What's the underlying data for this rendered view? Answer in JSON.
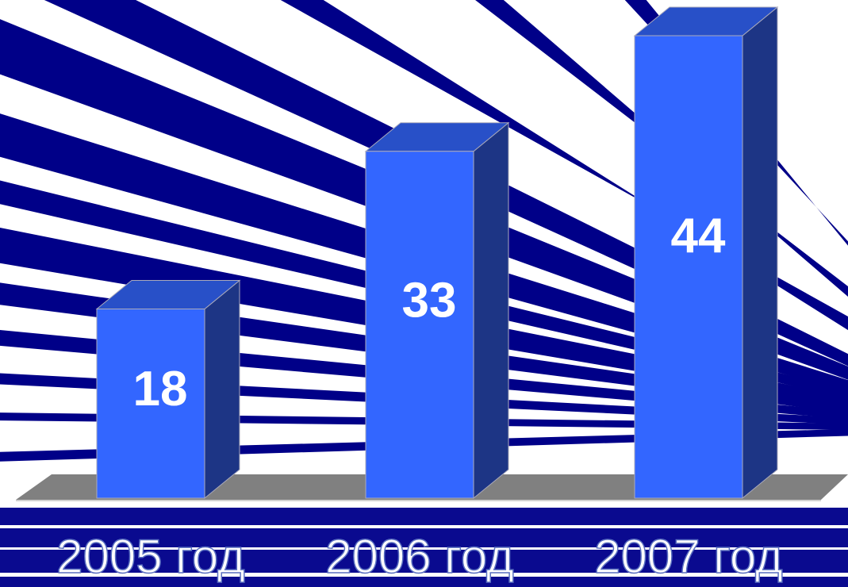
{
  "chart_data": {
    "type": "bar3d",
    "categories": [
      "2005 год",
      "2006 год",
      "2007 год"
    ],
    "values": [
      18,
      33,
      44
    ],
    "color": "#3366ff"
  }
}
